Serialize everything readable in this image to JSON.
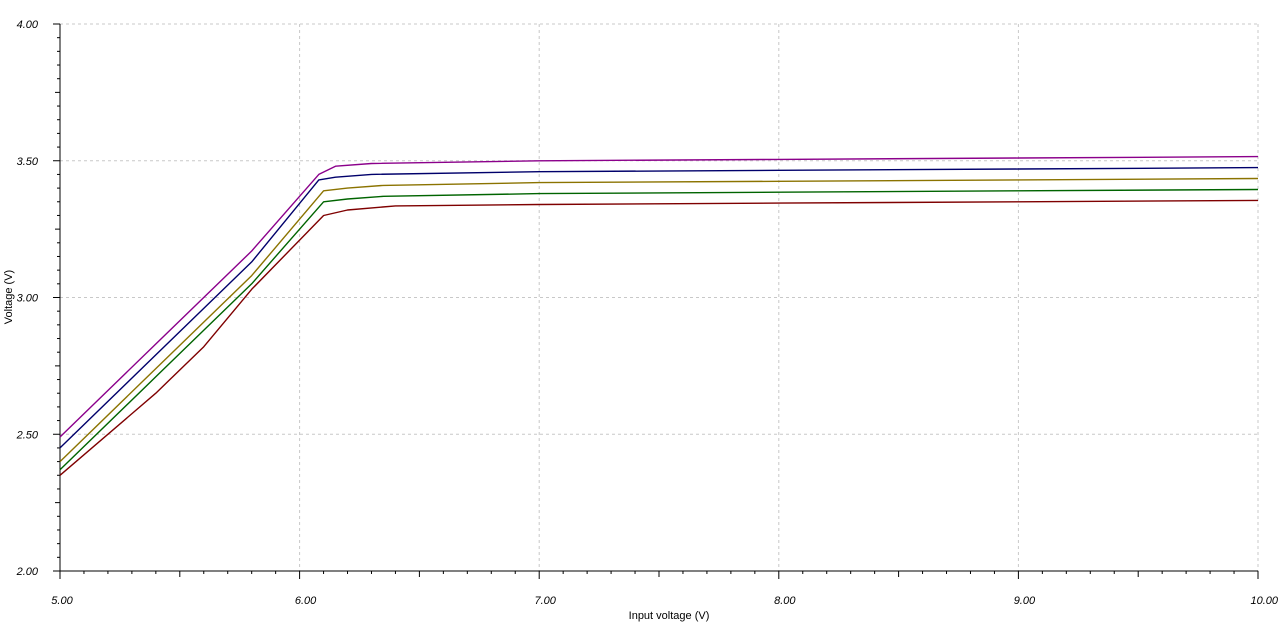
{
  "chart_data": {
    "type": "line",
    "title": "",
    "xlabel": "Input voltage (V)",
    "ylabel": "Voltage (V)",
    "xlim": [
      5.0,
      10.0
    ],
    "ylim": [
      2.0,
      4.0
    ],
    "x_ticks": [
      5.0,
      6.0,
      7.0,
      8.0,
      9.0,
      10.0
    ],
    "x_tick_labels": [
      "5.00",
      "6.00",
      "7.00",
      "8.00",
      "9.00",
      "10.00"
    ],
    "y_ticks": [
      2.0,
      2.5,
      3.0,
      3.5,
      4.0
    ],
    "y_tick_labels": [
      "2.00",
      "2.50",
      "3.00",
      "3.50",
      "4.00"
    ],
    "grid": true,
    "legend": "none",
    "series": [
      {
        "color": "#8b008b",
        "x": [
          5.0,
          5.4,
          5.8,
          6.08,
          6.15,
          6.3,
          7.0,
          8.0,
          9.0,
          10.0
        ],
        "y": [
          2.49,
          2.83,
          3.17,
          3.45,
          3.48,
          3.49,
          3.5,
          3.505,
          3.51,
          3.515
        ]
      },
      {
        "color": "#00006b",
        "x": [
          5.0,
          5.4,
          5.8,
          6.08,
          6.15,
          6.3,
          7.0,
          8.0,
          9.0,
          10.0
        ],
        "y": [
          2.45,
          2.79,
          3.13,
          3.43,
          3.44,
          3.45,
          3.46,
          3.465,
          3.47,
          3.475
        ]
      },
      {
        "color": "#8b7300",
        "x": [
          5.0,
          5.4,
          5.8,
          6.1,
          6.2,
          6.35,
          7.0,
          8.0,
          9.0,
          10.0
        ],
        "y": [
          2.4,
          2.74,
          3.08,
          3.39,
          3.4,
          3.41,
          3.42,
          3.425,
          3.43,
          3.435
        ]
      },
      {
        "color": "#006400",
        "x": [
          5.0,
          5.4,
          5.8,
          6.1,
          6.2,
          6.35,
          7.0,
          8.0,
          9.0,
          10.0
        ],
        "y": [
          2.37,
          2.71,
          3.05,
          3.35,
          3.36,
          3.37,
          3.38,
          3.385,
          3.39,
          3.395
        ]
      },
      {
        "color": "#7f0000",
        "x": [
          5.0,
          5.4,
          5.6,
          5.8,
          6.1,
          6.2,
          6.4,
          7.0,
          8.0,
          9.0,
          10.0
        ],
        "y": [
          2.35,
          2.65,
          2.82,
          3.03,
          3.3,
          3.32,
          3.335,
          3.34,
          3.345,
          3.35,
          3.355
        ]
      }
    ]
  }
}
